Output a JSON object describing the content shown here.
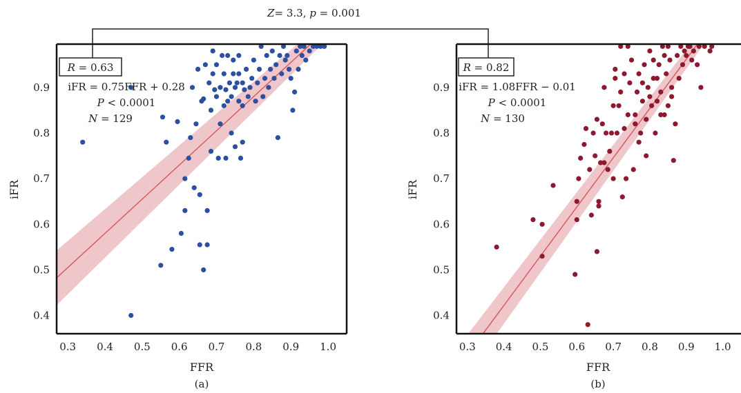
{
  "comparison": {
    "z_label": "Z",
    "z_value": "= 3.3, ",
    "p_label": "p",
    "p_value": " = 0.001"
  },
  "chart_data": [
    {
      "type": "scatter",
      "panel_label": "(a)",
      "xlabel": "FFR",
      "ylabel": "iFR",
      "xlim": [
        0.27,
        1.05
      ],
      "ylim": [
        0.36,
        0.995
      ],
      "x_ticks": [
        0.3,
        0.4,
        0.5,
        0.6,
        0.7,
        0.8,
        0.9,
        1.0
      ],
      "x_tick_labels": [
        "0.3",
        "0.4",
        "0.5",
        "0.6",
        "0.7",
        "0.8",
        "0.9",
        "1.0"
      ],
      "y_ticks": [
        0.4,
        0.5,
        0.6,
        0.7,
        0.8,
        0.9
      ],
      "y_tick_labels": [
        "0.4",
        "0.5",
        "0.6",
        "0.7",
        "0.8",
        "0.9"
      ],
      "point_color": "#2c4fa0",
      "line_color": "#d9535a",
      "band_color": "#eab4b8",
      "fit": {
        "slope": 0.75,
        "intercept": 0.28
      },
      "band_halfwidth": [
        0.06,
        0.02
      ],
      "stats": {
        "r_label": "R",
        "r_value": " = 0.63",
        "equation": "iFR = 0.75FFR + 0.28",
        "p_label": "P",
        "p_value": " < 0.0001",
        "n_label": "N",
        "n_value": " = 129"
      },
      "points": [
        [
          0.34,
          0.78
        ],
        [
          0.47,
          0.4
        ],
        [
          0.47,
          0.9
        ],
        [
          0.55,
          0.51
        ],
        [
          0.555,
          0.835
        ],
        [
          0.565,
          0.78
        ],
        [
          0.58,
          0.545
        ],
        [
          0.595,
          0.825
        ],
        [
          0.605,
          0.58
        ],
        [
          0.615,
          0.63
        ],
        [
          0.615,
          0.7
        ],
        [
          0.625,
          0.745
        ],
        [
          0.63,
          0.79
        ],
        [
          0.635,
          0.9
        ],
        [
          0.64,
          0.68
        ],
        [
          0.645,
          0.82
        ],
        [
          0.65,
          0.94
        ],
        [
          0.655,
          0.555
        ],
        [
          0.655,
          0.665
        ],
        [
          0.66,
          0.87
        ],
        [
          0.665,
          0.5
        ],
        [
          0.665,
          0.875
        ],
        [
          0.67,
          0.95
        ],
        [
          0.675,
          0.555
        ],
        [
          0.675,
          0.63
        ],
        [
          0.68,
          0.91
        ],
        [
          0.685,
          0.76
        ],
        [
          0.685,
          0.85
        ],
        [
          0.69,
          0.93
        ],
        [
          0.69,
          0.98
        ],
        [
          0.695,
          0.895
        ],
        [
          0.7,
          0.88
        ],
        [
          0.7,
          0.95
        ],
        [
          0.705,
          0.745
        ],
        [
          0.71,
          0.82
        ],
        [
          0.71,
          0.9
        ],
        [
          0.715,
          0.97
        ],
        [
          0.72,
          0.86
        ],
        [
          0.72,
          0.93
        ],
        [
          0.725,
          0.745
        ],
        [
          0.725,
          0.895
        ],
        [
          0.73,
          0.87
        ],
        [
          0.73,
          0.97
        ],
        [
          0.735,
          0.91
        ],
        [
          0.74,
          0.8
        ],
        [
          0.74,
          0.88
        ],
        [
          0.745,
          0.93
        ],
        [
          0.745,
          0.96
        ],
        [
          0.75,
          0.77
        ],
        [
          0.75,
          0.9
        ],
        [
          0.755,
          0.91
        ],
        [
          0.76,
          0.87
        ],
        [
          0.76,
          0.93
        ],
        [
          0.76,
          0.97
        ],
        [
          0.765,
          0.745
        ],
        [
          0.77,
          0.78
        ],
        [
          0.77,
          0.86
        ],
        [
          0.77,
          0.91
        ],
        [
          0.775,
          0.895
        ],
        [
          0.78,
          0.94
        ],
        [
          0.785,
          0.88
        ],
        [
          0.79,
          0.9
        ],
        [
          0.795,
          0.92
        ],
        [
          0.8,
          0.96
        ],
        [
          0.805,
          0.87
        ],
        [
          0.81,
          0.91
        ],
        [
          0.815,
          0.94
        ],
        [
          0.82,
          0.99
        ],
        [
          0.825,
          0.88
        ],
        [
          0.83,
          0.92
        ],
        [
          0.835,
          0.97
        ],
        [
          0.84,
          0.9
        ],
        [
          0.845,
          0.94
        ],
        [
          0.85,
          0.98
        ],
        [
          0.855,
          0.92
        ],
        [
          0.86,
          0.95
        ],
        [
          0.865,
          0.79
        ],
        [
          0.87,
          0.97
        ],
        [
          0.875,
          0.93
        ],
        [
          0.88,
          0.99
        ],
        [
          0.885,
          0.96
        ],
        [
          0.89,
          0.97
        ],
        [
          0.895,
          0.94
        ],
        [
          0.9,
          0.92
        ],
        [
          0.905,
          0.85
        ],
        [
          0.91,
          0.89
        ],
        [
          0.915,
          0.98
        ],
        [
          0.92,
          0.94
        ],
        [
          0.925,
          0.99
        ],
        [
          0.93,
          0.97
        ],
        [
          0.935,
          0.99
        ],
        [
          0.94,
          0.96
        ],
        [
          0.95,
          0.98
        ],
        [
          0.96,
          0.99
        ],
        [
          0.97,
          0.99
        ],
        [
          0.98,
          0.99
        ],
        [
          0.985,
          0.995
        ],
        [
          0.99,
          0.99
        ]
      ]
    },
    {
      "type": "scatter",
      "panel_label": "(b)",
      "xlabel": "FFR",
      "ylabel": "iFR",
      "xlim": [
        0.27,
        1.05
      ],
      "ylim": [
        0.36,
        0.995
      ],
      "x_ticks": [
        0.3,
        0.4,
        0.5,
        0.6,
        0.7,
        0.8,
        0.9,
        1.0
      ],
      "x_tick_labels": [
        "0.3",
        "0.4",
        "0.5",
        "0.6",
        "0.7",
        "0.8",
        "0.9",
        "1.0"
      ],
      "y_ticks": [
        0.4,
        0.5,
        0.6,
        0.7,
        0.8,
        0.9
      ],
      "y_tick_labels": [
        "0.4",
        "0.5",
        "0.6",
        "0.7",
        "0.8",
        "0.9"
      ],
      "point_color": "#8b1a2e",
      "line_color": "#d9535a",
      "band_color": "#eab4b8",
      "fit": {
        "slope": 1.08,
        "intercept": -0.01
      },
      "band_halfwidth": [
        0.045,
        0.015
      ],
      "stats": {
        "r_label": "R",
        "r_value": " = 0.82",
        "equation": "iFR = 1.08FFR − 0.01",
        "p_label": "P",
        "p_value": " < 0.0001",
        "n_label": "N",
        "n_value": " = 130"
      },
      "points": [
        [
          0.38,
          0.55
        ],
        [
          0.48,
          0.61
        ],
        [
          0.505,
          0.53
        ],
        [
          0.505,
          0.6
        ],
        [
          0.535,
          0.685
        ],
        [
          0.595,
          0.49
        ],
        [
          0.6,
          0.61
        ],
        [
          0.6,
          0.65
        ],
        [
          0.605,
          0.7
        ],
        [
          0.61,
          0.745
        ],
        [
          0.62,
          0.775
        ],
        [
          0.625,
          0.81
        ],
        [
          0.63,
          0.38
        ],
        [
          0.635,
          0.72
        ],
        [
          0.64,
          0.62
        ],
        [
          0.645,
          0.8
        ],
        [
          0.65,
          0.75
        ],
        [
          0.655,
          0.54
        ],
        [
          0.655,
          0.83
        ],
        [
          0.66,
          0.64
        ],
        [
          0.66,
          0.65
        ],
        [
          0.665,
          0.735
        ],
        [
          0.67,
          0.82
        ],
        [
          0.675,
          0.735
        ],
        [
          0.675,
          0.9
        ],
        [
          0.68,
          0.8
        ],
        [
          0.685,
          0.72
        ],
        [
          0.69,
          0.76
        ],
        [
          0.695,
          0.8
        ],
        [
          0.7,
          0.86
        ],
        [
          0.705,
          0.92
        ],
        [
          0.71,
          0.8
        ],
        [
          0.715,
          0.86
        ],
        [
          0.72,
          0.89
        ],
        [
          0.725,
          0.66
        ],
        [
          0.73,
          0.81
        ],
        [
          0.735,
          0.7
        ],
        [
          0.74,
          0.84
        ],
        [
          0.745,
          0.91
        ],
        [
          0.75,
          0.96
        ],
        [
          0.755,
          0.72
        ],
        [
          0.76,
          0.84
        ],
        [
          0.765,
          0.89
        ],
        [
          0.77,
          0.93
        ],
        [
          0.775,
          0.8
        ],
        [
          0.78,
          0.87
        ],
        [
          0.785,
          0.95
        ],
        [
          0.79,
          0.83
        ],
        [
          0.79,
          0.75
        ],
        [
          0.795,
          0.9
        ],
        [
          0.8,
          0.98
        ],
        [
          0.805,
          0.86
        ],
        [
          0.81,
          0.92
        ],
        [
          0.815,
          0.8
        ],
        [
          0.82,
          0.87
        ],
        [
          0.825,
          0.95
        ],
        [
          0.83,
          0.89
        ],
        [
          0.835,
          0.99
        ],
        [
          0.84,
          0.84
        ],
        [
          0.845,
          0.93
        ],
        [
          0.85,
          0.86
        ],
        [
          0.855,
          0.96
        ],
        [
          0.86,
          0.9
        ],
        [
          0.865,
          0.74
        ],
        [
          0.87,
          0.82
        ],
        [
          0.875,
          0.97
        ],
        [
          0.88,
          0.92
        ],
        [
          0.885,
          0.99
        ],
        [
          0.89,
          0.95
        ],
        [
          0.895,
          0.98
        ],
        [
          0.9,
          0.97
        ],
        [
          0.905,
          0.99
        ],
        [
          0.91,
          0.99
        ],
        [
          0.915,
          0.96
        ],
        [
          0.92,
          0.98
        ],
        [
          0.93,
          0.95
        ],
        [
          0.935,
          0.99
        ],
        [
          0.94,
          0.9
        ],
        [
          0.95,
          0.99
        ],
        [
          0.965,
          0.98
        ],
        [
          0.97,
          0.99
        ],
        [
          0.74,
          0.99
        ],
        [
          0.72,
          0.99
        ],
        [
          0.705,
          0.94
        ],
        [
          0.76,
          0.82
        ],
        [
          0.78,
          0.91
        ],
        [
          0.8,
          0.88
        ],
        [
          0.82,
          0.92
        ],
        [
          0.84,
          0.97
        ],
        [
          0.86,
          0.88
        ],
        [
          0.7,
          0.7
        ],
        [
          0.73,
          0.93
        ],
        [
          0.77,
          0.78
        ],
        [
          0.81,
          0.96
        ],
        [
          0.83,
          0.84
        ],
        [
          0.85,
          0.99
        ]
      ]
    }
  ]
}
